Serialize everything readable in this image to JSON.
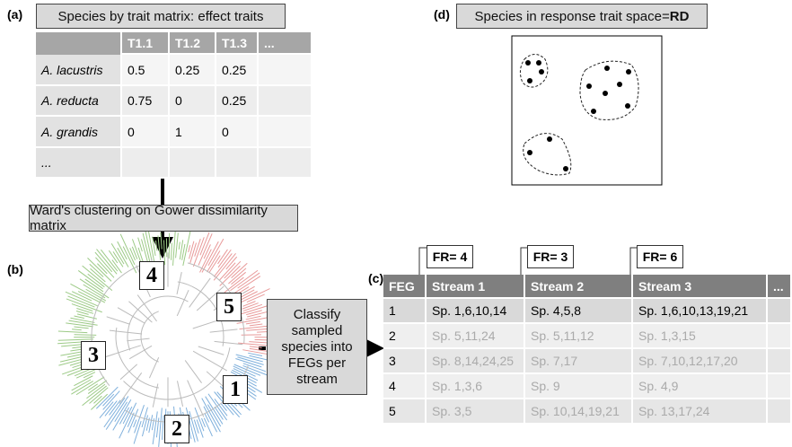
{
  "panel_a": {
    "label": "(a)",
    "title": "Species by trait matrix: effect traits",
    "table": {
      "header": [
        "T1.1",
        "T1.2",
        "T1.3",
        "..."
      ],
      "rows": [
        [
          "A. lacustris",
          "0.5",
          "0.25",
          "0.25"
        ],
        [
          "A. reducta",
          "0.75",
          "0",
          "0.25"
        ],
        [
          "A. grandis",
          "0",
          "1",
          "0"
        ],
        [
          "..."
        ]
      ]
    }
  },
  "clustering_step": "Ward's clustering on Gower dissimilarity matrix",
  "panel_b": {
    "label": "(b)",
    "cluster_labels": [
      "4",
      "5",
      "3",
      "1",
      "2"
    ]
  },
  "classify_step": [
    "Classify",
    "sampled",
    "species into",
    "FEGs per",
    "stream"
  ],
  "panel_c": {
    "label": "(c)",
    "fr_labels": [
      "FR= 4",
      "FR= 3",
      "FR= 6"
    ],
    "table": {
      "header": [
        "FEG",
        "Stream 1",
        "Stream 2",
        "Stream 3",
        "..."
      ],
      "rows": [
        [
          "1",
          "Sp. 1,6,10,14",
          "Sp. 4,5,8",
          "Sp. 1,6,10,13,19,21"
        ],
        [
          "2",
          "Sp. 5,11,24",
          "Sp. 5,11,12",
          "Sp. 1,3,15"
        ],
        [
          "3",
          "Sp. 8,14,24,25",
          "Sp. 7,17",
          "Sp. 7,10,12,17,20"
        ],
        [
          "4",
          "Sp. 1,3,6",
          "Sp. 9",
          "Sp. 4,9"
        ],
        [
          "5",
          "Sp. 3,5",
          "Sp. 10,14,19,21",
          "Sp. 13,17,24"
        ]
      ]
    }
  },
  "panel_d": {
    "label": "(d)",
    "title": "Species in response trait space=",
    "title_bold": "RD"
  }
}
